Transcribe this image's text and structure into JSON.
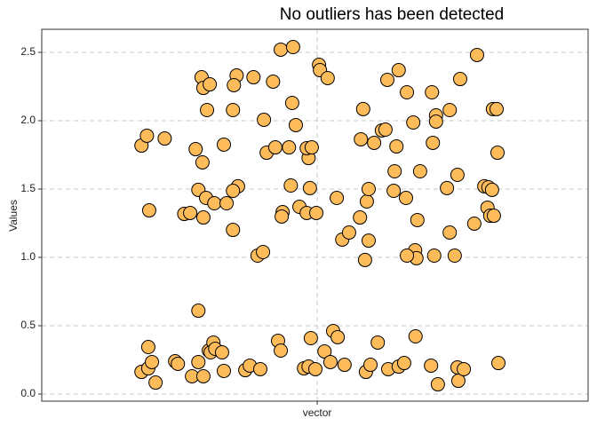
{
  "chart_data": {
    "type": "scatter",
    "title": "No outliers has been detected",
    "y_label": "Values",
    "color": "#fdbb5a",
    "edge_color": "#000000",
    "grid": true,
    "xlim": [
      0.395,
      1.595
    ],
    "xticks": [
      {
        "value": 1,
        "label": "vector"
      }
    ],
    "ylim": [
      -0.052,
      2.669
    ],
    "yticks": [
      {
        "value": 0,
        "label": "0.0"
      },
      0.5,
      {
        "value": 1,
        "label": "1.0"
      },
      1.5,
      {
        "value": 2,
        "label": "2.0"
      },
      2.5
    ],
    "x": [
      0.614,
      0.626,
      0.631,
      0.665,
      0.733,
      0.748,
      0.746,
      0.75,
      0.758,
      0.764,
      0.815,
      0.823,
      0.817,
      0.86,
      0.795,
      0.739,
      0.756,
      0.75,
      0.774,
      0.801,
      0.826,
      0.815,
      0.815,
      0.708,
      0.721,
      0.739,
      0.883,
      0.889,
      0.903,
      0.92,
      0.947,
      0.945,
      0.953,
      0.908,
      0.938,
      0.981,
      0.977,
      0.988,
      0.942,
      0.961,
      0.984,
      0.924,
      0.922,
      0.977,
      0.998,
      0.869,
      0.881,
      1.004,
      1.006,
      1.023,
      1.043,
      1.055,
      1.07,
      1.094,
      1.101,
      1.096,
      1.109,
      1.113,
      1.105,
      1.113,
      1.125,
      1.142,
      1.15,
      1.179,
      1.154,
      1.197,
      1.211,
      1.17,
      1.174,
      1.168,
      1.195,
      1.22,
      1.226,
      1.252,
      1.261,
      1.254,
      1.261,
      1.215,
      1.218,
      1.197,
      1.257,
      1.314,
      1.291,
      1.285,
      1.291,
      1.308,
      1.302,
      1.351,
      1.345,
      1.367,
      1.376,
      1.374,
      1.38,
      1.388,
      1.386,
      1.394,
      1.384,
      1.396,
      0.629,
      0.614,
      0.629,
      0.637,
      0.645,
      0.688,
      0.694,
      0.725,
      0.739,
      0.75,
      0.762,
      0.772,
      0.766,
      0.776,
      0.791,
      0.795,
      0.842,
      0.852,
      0.875,
      0.914,
      0.92,
      0.971,
      0.981,
      0.986,
      0.996,
      1.016,
      1.035,
      1.045,
      1.029,
      1.06,
      1.107,
      1.117,
      1.133,
      1.156,
      1.179,
      1.191,
      1.216,
      1.25,
      1.265,
      1.308,
      1.31,
      1.322,
      1.398
    ],
    "values": [
      1.818,
      1.89,
      1.344,
      1.87,
      1.792,
      1.695,
      2.318,
      2.24,
      2.078,
      2.266,
      2.078,
      2.331,
      2.26,
      2.318,
      1.825,
      1.494,
      1.435,
      1.292,
      1.396,
      1.396,
      1.52,
      1.487,
      1.201,
      1.318,
      1.325,
      0.61,
      2.007,
      1.766,
      2.286,
      2.52,
      2.539,
      2.13,
      1.968,
      1.805,
      1.805,
      1.727,
      1.799,
      1.805,
      1.526,
      1.37,
      1.507,
      1.331,
      1.299,
      1.325,
      1.325,
      1.013,
      1.039,
      2.409,
      2.37,
      2.312,
      1.435,
      1.13,
      1.182,
      1.292,
      2.085,
      1.864,
      1.409,
      1.5,
      0.981,
      1.123,
      1.838,
      1.929,
      1.935,
      2.37,
      2.299,
      2.208,
      1.987,
      1.63,
      1.812,
      1.487,
      1.435,
      1.273,
      1.63,
      2.208,
      2.039,
      1.838,
      1.994,
      1.052,
      0.994,
      1.013,
      1.013,
      2.305,
      2.078,
      1.507,
      1.182,
      1.604,
      1.013,
      2.481,
      1.247,
      1.52,
      1.513,
      1.364,
      1.305,
      1.305,
      2.085,
      2.085,
      1.494,
      1.766,
      0.344,
      0.162,
      0.188,
      0.234,
      0.084,
      0.24,
      0.221,
      0.13,
      0.234,
      0.13,
      0.318,
      0.377,
      0.305,
      0.331,
      0.305,
      0.169,
      0.175,
      0.208,
      0.182,
      0.39,
      0.318,
      0.188,
      0.201,
      0.409,
      0.182,
      0.312,
      0.461,
      0.416,
      0.234,
      0.214,
      0.162,
      0.214,
      0.377,
      0.182,
      0.201,
      0.227,
      0.422,
      0.208,
      0.071,
      0.195,
      0.097,
      0.182,
      0.227
    ]
  }
}
